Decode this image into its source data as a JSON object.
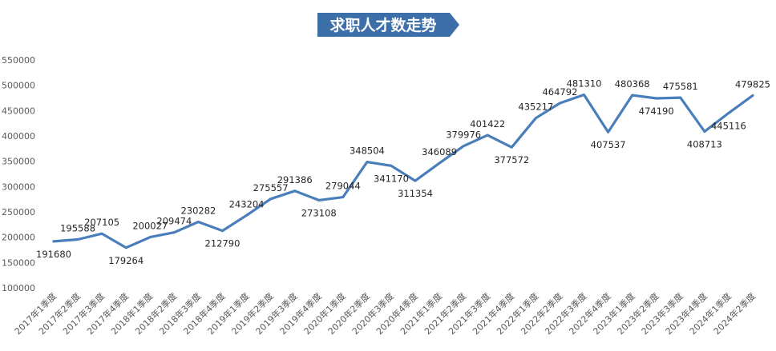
{
  "chart_data": {
    "type": "line",
    "title": "求职人才数走势",
    "xlabel": "",
    "ylabel": "",
    "ylim": [
      100000,
      550000
    ],
    "yticks": [
      100000,
      150000,
      200000,
      250000,
      300000,
      350000,
      400000,
      450000,
      500000,
      550000
    ],
    "grid": false,
    "legend": "none",
    "categories": [
      "2017年1季度",
      "2017年2季度",
      "2017年3季度",
      "2017年4季度",
      "2018年1季度",
      "2018年2季度",
      "2018年3季度",
      "2018年4季度",
      "2019年1季度",
      "2019年2季度",
      "2019年3季度",
      "2019年4季度",
      "2020年1季度",
      "2020年2季度",
      "2020年3季度",
      "2020年4季度",
      "2021年1季度",
      "2021年2季度",
      "2021年3季度",
      "2021年4季度",
      "2022年1季度",
      "2022年2季度",
      "2022年3季度",
      "2022年4季度",
      "2023年1季度",
      "2023年2季度",
      "2023年3季度",
      "2023年4季度",
      "2024年1季度",
      "2024年2季度"
    ],
    "series": [
      {
        "values": [
          191680,
          195588,
          207105,
          179264,
          200027,
          209474,
          230282,
          212790,
          243204,
          275557,
          291386,
          273108,
          279044,
          348504,
          341170,
          311354,
          346089,
          379976,
          401422,
          377572,
          435217,
          464792,
          481310,
          407537,
          480368,
          474190,
          475581,
          408713,
          445116,
          479825
        ]
      }
    ],
    "line_color": "#4A7EBB",
    "title_bg_color": "#3C6FA8"
  }
}
